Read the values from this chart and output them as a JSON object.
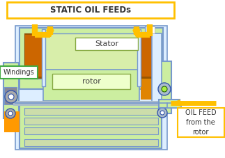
{
  "bg_color": "#ffffff",
  "title_text": "STATIC OIL FEEDs",
  "title_box_color": "#FFC000",
  "stator_label": "Stator",
  "rotor_label": "rotor",
  "windings_label": "Windings",
  "oil_feed_label": "OIL FEED\nfrom the\nrotor",
  "light_green": "#CCEEA0",
  "stator_green": "#BBDD88",
  "blue_outline": "#7799CC",
  "dark_blue": "#3355AA",
  "orange": "#CC7700",
  "orange_bright": "#FF9900",
  "gray": "#888899",
  "yellow": "#FFC000",
  "white": "#FFFFFF",
  "light_blue_bg": "#DDEEFF",
  "fig_width": 3.23,
  "fig_height": 2.27,
  "dpi": 100
}
